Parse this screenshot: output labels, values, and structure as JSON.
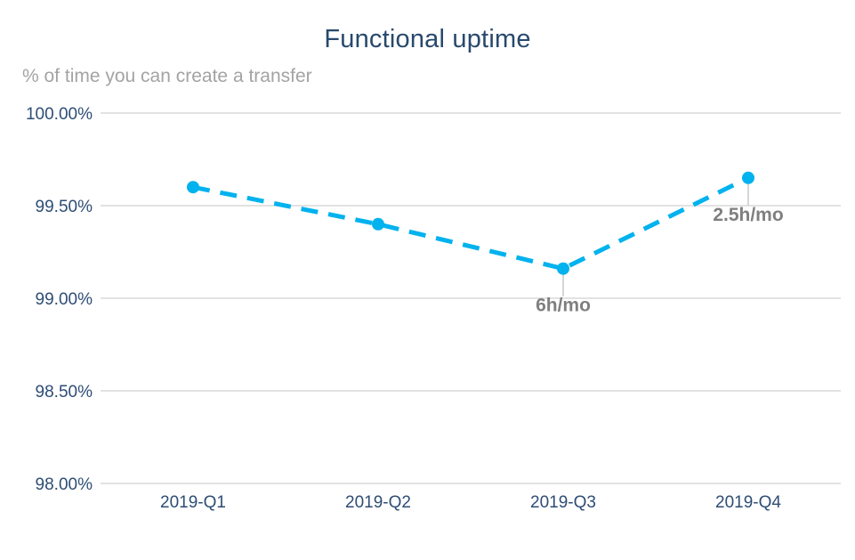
{
  "chart_data": {
    "type": "line",
    "title": "Functional uptime",
    "subtitle": "% of time you can create a transfer",
    "categories": [
      "2019-Q1",
      "2019-Q2",
      "2019-Q3",
      "2019-Q4"
    ],
    "series": [
      {
        "name": "Functional uptime",
        "values": [
          99.6,
          99.4,
          99.16,
          99.65
        ]
      }
    ],
    "annotations": [
      "",
      "",
      "6h/mo",
      "2.5h/mo"
    ],
    "ylim": [
      98.0,
      100.0
    ],
    "yticks": {
      "values": [
        100.0,
        99.5,
        99.0,
        98.5,
        98.0
      ],
      "labels": [
        "100.00%",
        "99.50%",
        "99.00%",
        "98.50%",
        "98.00%"
      ]
    },
    "xlabel": "",
    "ylabel": "",
    "grid": "horizontal",
    "legend": "none",
    "line_style": "dashed",
    "marker": "circle",
    "colors": {
      "line": "#00b2ee",
      "marker": "#00b2ee",
      "title": "#28496d",
      "subtitle": "#a3a3a3",
      "axis_text": "#2e4d75",
      "gridline": "#d9d9d9",
      "annotation_text": "#7f7f7f",
      "annotation_connector": "#cccccc",
      "background": "#ffffff"
    }
  }
}
